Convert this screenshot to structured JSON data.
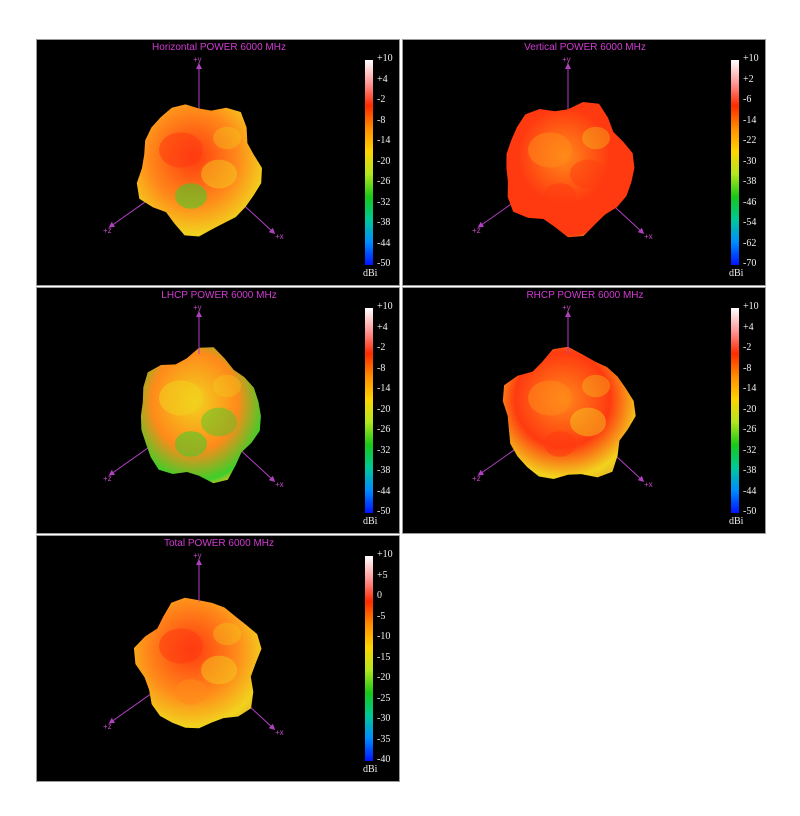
{
  "colors": {
    "background": "#000000",
    "title": "#d23bd2",
    "axis": "#b040c0",
    "tick_text": "#f0f0f0",
    "colorbar": [
      "#ffffff",
      "#ff9a9a",
      "#ff2a00",
      "#ff8c00",
      "#ffd400",
      "#b4e61e",
      "#18c818",
      "#00c896",
      "#008cff",
      "#0014ff"
    ]
  },
  "axes": {
    "y": "+y",
    "z": "+z",
    "x": "+x"
  },
  "chart_data": [
    {
      "type": "3d-radiation-pattern",
      "title": "Horizontal POWER 6000  MHz",
      "colorbar_label": "dBi",
      "colorbar_range": [
        -50,
        10
      ],
      "colorbar_ticks": [
        "+10",
        "+4",
        "-2",
        "-8",
        "-14",
        "-20",
        "-26",
        "-32",
        "-38",
        "-44",
        "-50"
      ],
      "axes": [
        "+y",
        "+z",
        "+x"
      ],
      "dominant_colors": [
        "orange",
        "red",
        "yellow",
        "green"
      ]
    },
    {
      "type": "3d-radiation-pattern",
      "title": "Vertical POWER 6000  MHz",
      "colorbar_label": "dBi",
      "colorbar_range": [
        -70,
        10
      ],
      "colorbar_ticks": [
        "+10",
        "+2",
        "-6",
        "-14",
        "-22",
        "-30",
        "-38",
        "-46",
        "-54",
        "-62",
        "-70"
      ],
      "axes": [
        "+y",
        "+z",
        "+x"
      ],
      "dominant_colors": [
        "red",
        "orange"
      ]
    },
    {
      "type": "3d-radiation-pattern",
      "title": "LHCP POWER 6000  MHz",
      "colorbar_label": "dBi",
      "colorbar_range": [
        -50,
        10
      ],
      "colorbar_ticks": [
        "+10",
        "+4",
        "-2",
        "-8",
        "-14",
        "-20",
        "-26",
        "-32",
        "-38",
        "-44",
        "-50"
      ],
      "axes": [
        "+y",
        "+z",
        "+x"
      ],
      "dominant_colors": [
        "orange",
        "yellow",
        "green"
      ]
    },
    {
      "type": "3d-radiation-pattern",
      "title": "RHCP POWER 6000  MHz",
      "colorbar_label": "dBi",
      "colorbar_range": [
        -50,
        10
      ],
      "colorbar_ticks": [
        "+10",
        "+4",
        "-2",
        "-8",
        "-14",
        "-20",
        "-26",
        "-32",
        "-38",
        "-44",
        "-50"
      ],
      "axes": [
        "+y",
        "+z",
        "+x"
      ],
      "dominant_colors": [
        "red",
        "orange",
        "yellow"
      ]
    },
    {
      "type": "3d-radiation-pattern",
      "title": "Total POWER 6000  MHz",
      "colorbar_label": "dBi",
      "colorbar_range": [
        -40,
        10
      ],
      "colorbar_ticks": [
        "+10",
        "+5",
        "0",
        "-5",
        "-10",
        "-15",
        "-20",
        "-25",
        "-30",
        "-35",
        "-40"
      ],
      "axes": [
        "+y",
        "+z",
        "+x"
      ],
      "dominant_colors": [
        "orange",
        "red",
        "yellow"
      ]
    }
  ]
}
